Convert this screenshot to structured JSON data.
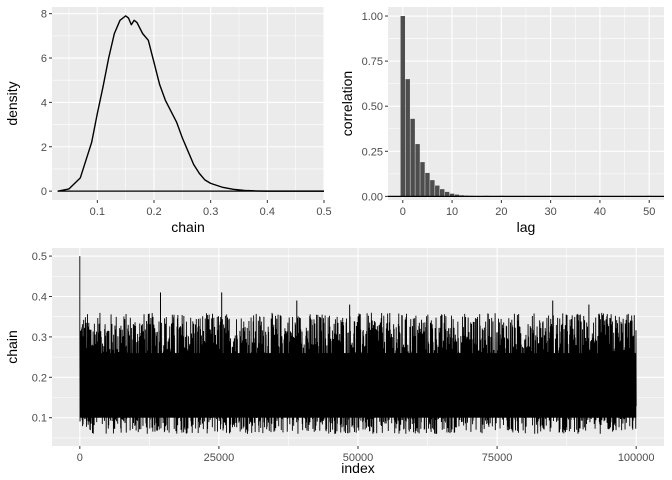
{
  "chart_data": [
    {
      "type": "line",
      "panel": "density",
      "xlabel": "chain",
      "ylabel": "density",
      "xlim": [
        0.02,
        0.5
      ],
      "ylim": [
        -0.4,
        8.3
      ],
      "x_ticks": [
        0.1,
        0.2,
        0.3,
        0.4,
        0.5
      ],
      "y_ticks": [
        0,
        2,
        4,
        6,
        8
      ],
      "x_tick_labels": [
        "0.1",
        "0.2",
        "0.3",
        "0.4",
        "0.5"
      ],
      "y_tick_labels": [
        "0",
        "2",
        "4",
        "6",
        "8"
      ],
      "baseline": 0,
      "x": [
        0.03,
        0.05,
        0.07,
        0.09,
        0.1,
        0.11,
        0.12,
        0.13,
        0.14,
        0.15,
        0.155,
        0.16,
        0.165,
        0.17,
        0.18,
        0.19,
        0.2,
        0.21,
        0.22,
        0.23,
        0.24,
        0.25,
        0.26,
        0.27,
        0.28,
        0.29,
        0.3,
        0.32,
        0.34,
        0.36,
        0.38,
        0.4,
        0.45,
        0.5
      ],
      "y": [
        0.0,
        0.1,
        0.6,
        2.2,
        3.5,
        4.7,
        6.0,
        7.1,
        7.7,
        7.9,
        7.8,
        7.5,
        7.7,
        7.6,
        7.1,
        6.8,
        5.8,
        4.8,
        4.1,
        3.6,
        3.1,
        2.4,
        1.8,
        1.2,
        0.8,
        0.5,
        0.35,
        0.18,
        0.08,
        0.03,
        0.01,
        0.0,
        0.0,
        0.0
      ],
      "grid": true,
      "legend": "none"
    },
    {
      "type": "bar",
      "panel": "autocorrelation",
      "xlabel": "lag",
      "ylabel": "correlation",
      "xlim": [
        -3,
        53
      ],
      "ylim": [
        -0.02,
        1.05
      ],
      "x_ticks": [
        0,
        10,
        20,
        30,
        40,
        50
      ],
      "y_ticks": [
        0,
        0.25,
        0.5,
        0.75,
        1
      ],
      "x_tick_labels": [
        "0",
        "10",
        "20",
        "30",
        "40",
        "50"
      ],
      "y_tick_labels": [
        "0.00",
        "0.25",
        "0.50",
        "0.75",
        "1.00"
      ],
      "baseline": 0,
      "x": [
        0,
        1,
        2,
        3,
        4,
        5,
        6,
        7,
        8,
        9,
        10,
        11,
        12,
        13,
        14,
        15,
        16,
        17,
        18,
        19,
        20,
        21,
        22,
        23,
        24,
        25,
        26,
        27,
        28,
        29,
        30,
        31,
        32,
        33,
        34,
        35,
        36,
        37,
        38,
        39,
        40,
        41,
        42,
        43,
        44,
        45,
        46,
        47,
        48,
        49,
        50
      ],
      "values": [
        1.0,
        0.65,
        0.43,
        0.29,
        0.19,
        0.13,
        0.09,
        0.06,
        0.04,
        0.025,
        0.015,
        0.01,
        0.006,
        0.004,
        0.003,
        0.002,
        0.002,
        0.003,
        0.002,
        0.002,
        0.003,
        0.002,
        0.002,
        0.002,
        0.002,
        0.002,
        0.002,
        0.002,
        0.002,
        0.002,
        0.002,
        0.002,
        0.002,
        0.002,
        0.002,
        0.002,
        0.002,
        0.002,
        0.002,
        0.003,
        0.002,
        0.002,
        0.002,
        0.002,
        0.002,
        0.002,
        0.002,
        0.002,
        0.002,
        0.002,
        0.003
      ],
      "grid": true,
      "legend": "none"
    },
    {
      "type": "line",
      "panel": "trace",
      "xlabel": "index",
      "ylabel": "chain",
      "xlim": [
        -5000,
        105000
      ],
      "ylim": [
        0.03,
        0.52
      ],
      "x_ticks": [
        0,
        25000,
        50000,
        75000,
        100000
      ],
      "y_ticks": [
        0.1,
        0.2,
        0.3,
        0.4,
        0.5
      ],
      "x_tick_labels": [
        "0",
        "25000",
        "50000",
        "75000",
        "100000"
      ],
      "y_tick_labels": [
        "0.1",
        "0.2",
        "0.3",
        "0.4",
        "0.5"
      ],
      "n_iterations": 100000,
      "start_value": 0.5,
      "mode": 0.16,
      "typical_min": 0.06,
      "typical_max": 0.34,
      "peaks": [
        {
          "x": 14500,
          "y": 0.41
        },
        {
          "x": 25500,
          "y": 0.41
        },
        {
          "x": 39000,
          "y": 0.39
        },
        {
          "x": 48500,
          "y": 0.38
        },
        {
          "x": 85000,
          "y": 0.39
        },
        {
          "x": 91500,
          "y": 0.38
        }
      ],
      "grid": true,
      "legend": "none"
    }
  ]
}
